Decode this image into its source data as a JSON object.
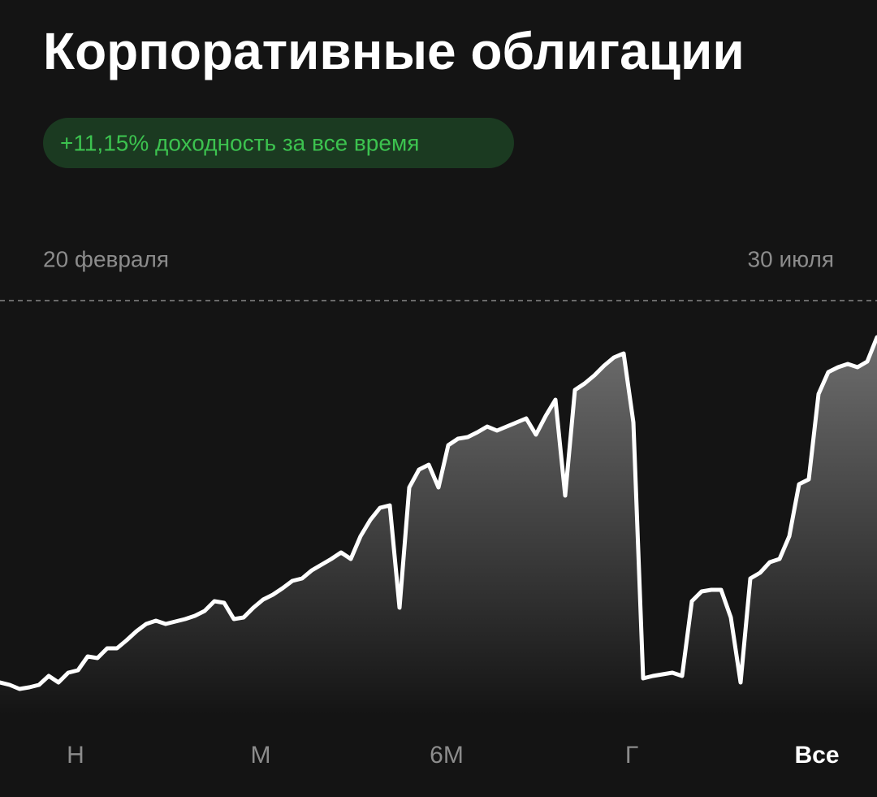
{
  "header": {
    "title": "Корпоративные облигации",
    "badge": "+11,15% доходность за все время"
  },
  "chart_data": {
    "type": "line",
    "start_label": "20 февраля",
    "end_label": "30 июля",
    "color": "#ffffff",
    "ylim": [
      0,
      510
    ],
    "values": [
      40,
      37,
      32,
      34,
      37,
      48,
      40,
      52,
      55,
      72,
      70,
      82,
      82,
      92,
      103,
      112,
      116,
      112,
      115,
      118,
      122,
      128,
      140,
      138,
      118,
      120,
      132,
      142,
      148,
      156,
      165,
      168,
      178,
      185,
      192,
      200,
      192,
      220,
      240,
      255,
      258,
      132,
      280,
      302,
      308,
      280,
      332,
      340,
      342,
      348,
      355,
      350,
      355,
      360,
      365,
      345,
      368,
      388,
      270,
      400,
      408,
      418,
      430,
      440,
      445,
      360,
      45,
      48,
      50,
      52,
      48,
      140,
      152,
      154,
      154,
      120,
      40,
      168,
      175,
      188,
      192,
      220,
      284,
      290,
      395,
      422,
      428,
      432,
      428,
      435,
      465
    ]
  },
  "tabs": [
    "Н",
    "М",
    "6М",
    "Г",
    "Все"
  ],
  "active_tab": 4
}
